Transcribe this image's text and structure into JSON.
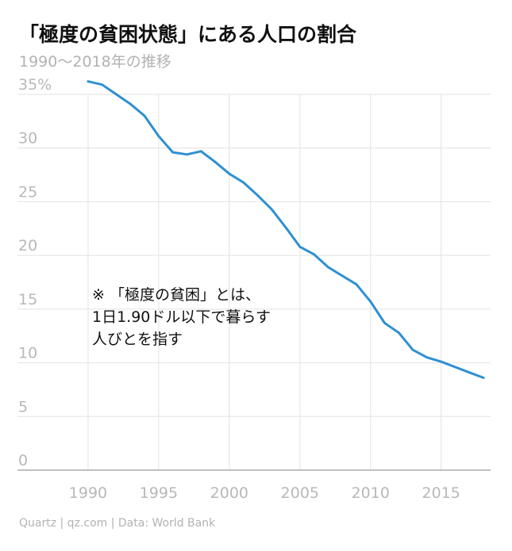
{
  "title": "「極度の貧困状態」にある人口の割合",
  "subtitle": "1990〜2018年の推移",
  "note": {
    "line1": "※ 「極度の貧困」とは、",
    "line2": "1日1.90ドル以下で暮らす",
    "line3": "人びとを指す"
  },
  "source": "Quartz | qz.com | Data: World Bank",
  "colors": {
    "line": "#2e90d2",
    "grid": "#e2e2e2",
    "axis": "#9a9a9a",
    "tick": "#b8b8b8"
  },
  "chart_data": {
    "type": "line",
    "title": "「極度の貧困状態」にある人口の割合",
    "subtitle": "1990〜2018年の推移",
    "xlabel": "",
    "ylabel": "",
    "xlim": [
      1985,
      2018.5
    ],
    "ylim": [
      0,
      35
    ],
    "x_ticks": [
      1990,
      1995,
      2000,
      2005,
      2010,
      2015
    ],
    "x_tick_labels": [
      "1990",
      "1995",
      "2000",
      "2005",
      "2010",
      "2015"
    ],
    "y_ticks": [
      0,
      5,
      10,
      15,
      20,
      25,
      30,
      35
    ],
    "y_tick_labels": [
      "0",
      "5",
      "10",
      "15",
      "20",
      "25",
      "30",
      "35%"
    ],
    "grid": true,
    "series": [
      {
        "color": "#2e90d2",
        "x": [
          1990,
          1991,
          1992,
          1993,
          1994,
          1995,
          1996,
          1997,
          1998,
          1999,
          2000,
          2001,
          2002,
          2003,
          2004,
          2005,
          2006,
          2007,
          2008,
          2009,
          2010,
          2011,
          2012,
          2013,
          2014,
          2015,
          2016,
          2017,
          2018
        ],
        "y": [
          36.2,
          35.9,
          35.0,
          34.1,
          33.0,
          31.1,
          29.6,
          29.4,
          29.7,
          28.7,
          27.6,
          26.8,
          25.6,
          24.3,
          22.6,
          20.8,
          20.1,
          18.9,
          18.1,
          17.3,
          15.7,
          13.7,
          12.8,
          11.2,
          10.5,
          10.1,
          9.6,
          9.1,
          8.6
        ]
      }
    ]
  }
}
